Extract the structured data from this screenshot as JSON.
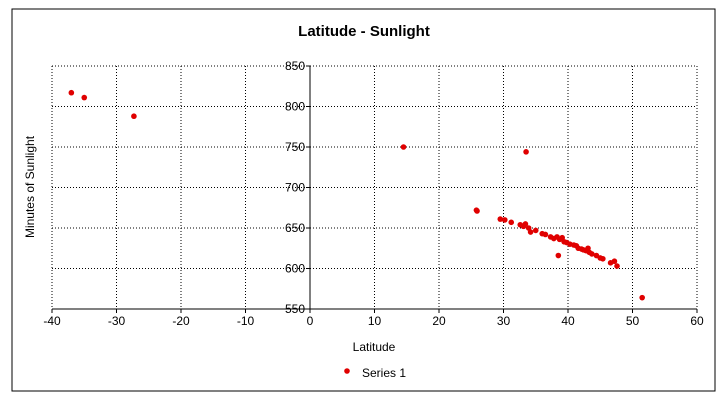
{
  "chart_data": {
    "type": "scatter",
    "title": "Latitude - Sunlight",
    "xlabel": "Latitude",
    "ylabel": "Minutes of Sunlight",
    "xlim": [
      -40,
      60
    ],
    "ylim": [
      550,
      850
    ],
    "x_ticks": [
      -40,
      -30,
      -20,
      -10,
      0,
      10,
      20,
      30,
      40,
      50,
      60
    ],
    "y_ticks": [
      550,
      600,
      650,
      700,
      750,
      800,
      850
    ],
    "grid": true,
    "legend_position": "bottom",
    "series": [
      {
        "name": "Series 1",
        "color": "#e00000",
        "points": [
          [
            -37,
            817
          ],
          [
            -35,
            811
          ],
          [
            -27.3,
            788
          ],
          [
            14.5,
            750
          ],
          [
            33.5,
            744
          ],
          [
            25.8,
            672
          ],
          [
            25.9,
            671
          ],
          [
            29.5,
            661
          ],
          [
            30.2,
            660
          ],
          [
            31.2,
            657
          ],
          [
            32.6,
            654
          ],
          [
            33.1,
            652
          ],
          [
            33.4,
            655
          ],
          [
            33.9,
            650
          ],
          [
            34.2,
            645
          ],
          [
            35.0,
            647
          ],
          [
            36.0,
            643
          ],
          [
            36.5,
            642
          ],
          [
            37.3,
            639
          ],
          [
            37.8,
            637
          ],
          [
            38.3,
            639
          ],
          [
            38.7,
            636
          ],
          [
            39.1,
            638
          ],
          [
            39.4,
            633
          ],
          [
            39.8,
            632
          ],
          [
            40.3,
            630
          ],
          [
            40.9,
            629
          ],
          [
            41.3,
            628
          ],
          [
            41.6,
            625
          ],
          [
            42.1,
            624
          ],
          [
            42.4,
            623
          ],
          [
            42.8,
            622
          ],
          [
            43.1,
            625
          ],
          [
            43.3,
            620
          ],
          [
            43.7,
            618
          ],
          [
            44.4,
            616
          ],
          [
            45.0,
            613
          ],
          [
            45.4,
            612
          ],
          [
            46.6,
            607
          ],
          [
            47.2,
            609
          ],
          [
            47.6,
            603
          ],
          [
            38.5,
            616
          ],
          [
            51.5,
            564
          ]
        ]
      }
    ]
  }
}
